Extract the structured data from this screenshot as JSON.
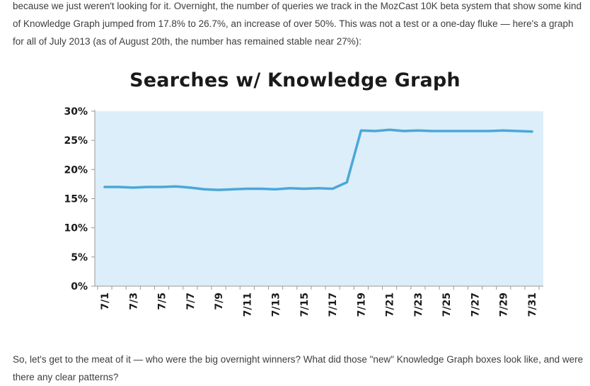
{
  "article": {
    "intro": "because we just weren't looking for it. Overnight, the number of queries we track in the MozCast 10K beta system that show some kind of Knowledge Graph jumped from 17.8% to 26.7%, an increase of over 50%. This was not a test or a one-day fluke — here's a graph for all of July 2013 (as of August 20th, the number has remained stable near 27%):",
    "outro": "So, let's get to the meat of it — who were the big overnight winners? What did those \"new\" Knowledge Graph boxes look like, and were there any clear patterns?"
  },
  "chart_data": {
    "type": "line",
    "title": "Searches w/ Knowledge Graph",
    "xlabel": "",
    "ylabel": "",
    "ylim": [
      0,
      30
    ],
    "ytick_labels": [
      "0%",
      "5%",
      "10%",
      "15%",
      "20%",
      "25%",
      "30%"
    ],
    "yticks": [
      0,
      5,
      10,
      15,
      20,
      25,
      30
    ],
    "categories": [
      "7/1",
      "7/2",
      "7/3",
      "7/4",
      "7/5",
      "7/6",
      "7/7",
      "7/8",
      "7/9",
      "7/10",
      "7/11",
      "7/12",
      "7/13",
      "7/14",
      "7/15",
      "7/16",
      "7/17",
      "7/18",
      "7/19",
      "7/20",
      "7/21",
      "7/22",
      "7/23",
      "7/24",
      "7/25",
      "7/26",
      "7/27",
      "7/28",
      "7/29",
      "7/30",
      "7/31"
    ],
    "xtick_labels": [
      "7/1",
      "7/3",
      "7/5",
      "7/7",
      "7/9",
      "7/11",
      "7/13",
      "7/15",
      "7/17",
      "7/19",
      "7/21",
      "7/23",
      "7/25",
      "7/27",
      "7/29",
      "7/31"
    ],
    "series": [
      {
        "values": [
          17.0,
          17.0,
          16.9,
          17.0,
          17.0,
          17.1,
          16.9,
          16.6,
          16.5,
          16.6,
          16.7,
          16.7,
          16.6,
          16.8,
          16.7,
          16.8,
          16.7,
          17.8,
          26.7,
          26.6,
          26.8,
          26.6,
          26.7,
          26.6,
          26.6,
          26.6,
          26.6,
          26.6,
          26.7,
          26.6,
          26.5
        ]
      }
    ],
    "grid": false,
    "colors": {
      "line": "#4aa8d8",
      "plot_background": "#dceef9",
      "axis": "#999999"
    }
  }
}
